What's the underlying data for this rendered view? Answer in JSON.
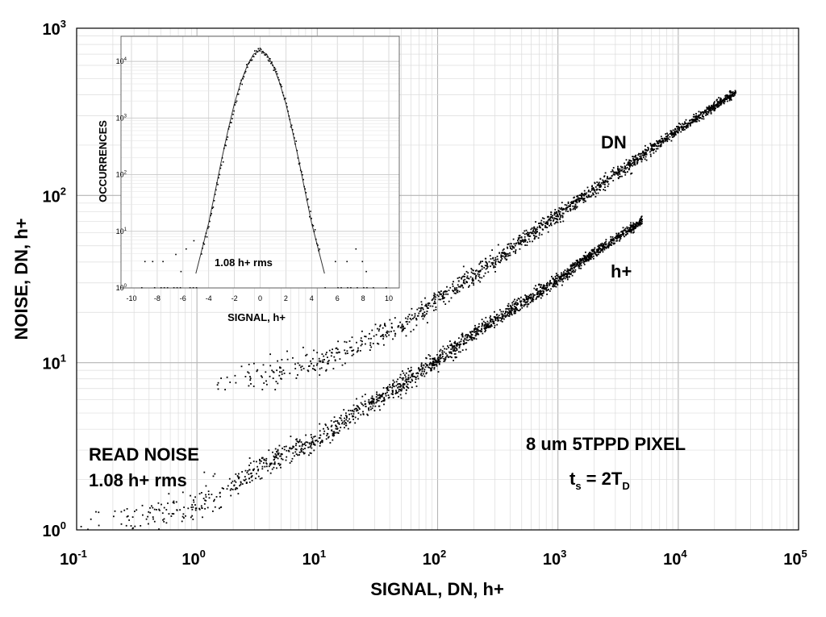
{
  "chart_data": [
    {
      "type": "scatter",
      "xlabel": "SIGNAL, DN, h+",
      "ylabel": "NOISE, DN, h+",
      "x_scale": "log",
      "y_scale": "log",
      "xlim": [
        0.1,
        100000
      ],
      "ylim": [
        1,
        1000
      ],
      "grid": true,
      "x_ticks": [
        {
          "base": "10",
          "exp": "-1"
        },
        {
          "base": "10",
          "exp": "0"
        },
        {
          "base": "10",
          "exp": "1"
        },
        {
          "base": "10",
          "exp": "2"
        },
        {
          "base": "10",
          "exp": "3"
        },
        {
          "base": "10",
          "exp": "4"
        },
        {
          "base": "10",
          "exp": "5"
        }
      ],
      "y_ticks": [
        {
          "base": "10",
          "exp": "0"
        },
        {
          "base": "10",
          "exp": "1"
        },
        {
          "base": "10",
          "exp": "2"
        },
        {
          "base": "10",
          "exp": "3"
        }
      ],
      "series": [
        {
          "name": "DN",
          "x": [
            1,
            2,
            3,
            5,
            10,
            20,
            50,
            100,
            200,
            500,
            1000,
            2000,
            5000,
            10000,
            30000
          ],
          "y": [
            7,
            7.7,
            8.3,
            9,
            10,
            12.5,
            17,
            24,
            34,
            54,
            78,
            110,
            175,
            250,
            420
          ]
        },
        {
          "name": "h+",
          "x": [
            0.1,
            0.3,
            1,
            2,
            3,
            5,
            10,
            20,
            50,
            100,
            200,
            500,
            1000,
            2000,
            5000
          ],
          "y": [
            1.1,
            1.2,
            1.4,
            1.9,
            2.3,
            2.8,
            3.5,
            5,
            7.5,
            10.5,
            15,
            23,
            32,
            46,
            72
          ]
        }
      ],
      "annotations": {
        "series_label_dn": "DN",
        "series_label_hplus": "h+",
        "read_noise_line1": "READ NOISE",
        "read_noise_line2": "1.08 h+  rms",
        "pixel_label": "8 um 5TPPD PIXEL",
        "ts_main": "t",
        "ts_sub": "s",
        "ts_mid": " = 2T",
        "ts_sub2": "D"
      }
    },
    {
      "type": "scatter",
      "xlabel": "SIGNAL, h+",
      "ylabel": "OCCURRENCES",
      "x_scale": "linear",
      "y_scale": "log",
      "xlim": [
        -10,
        10
      ],
      "ylim": [
        1,
        20000
      ],
      "grid": true,
      "x_ticks": [
        "-10",
        "-8",
        "-6",
        "-4",
        "-2",
        "0",
        "2",
        "4",
        "6",
        "8",
        "10"
      ],
      "y_ticks": [
        {
          "base": "10",
          "exp": "0"
        },
        {
          "base": "10",
          "exp": "1"
        },
        {
          "base": "10",
          "exp": "2"
        },
        {
          "base": "10",
          "exp": "3"
        },
        {
          "base": "10",
          "exp": "4"
        }
      ],
      "series": [
        {
          "x": [
            -5,
            -4.5,
            -4,
            -3.5,
            -3,
            -2.5,
            -2,
            -1.5,
            -1,
            -0.5,
            0,
            0.5,
            1,
            1.5,
            2,
            2.5,
            3,
            3.5,
            4,
            4.5,
            5
          ],
          "y": [
            1.8,
            5,
            14,
            50,
            180,
            600,
            1800,
            4300,
            8500,
            13500,
            15500,
            13500,
            8500,
            4300,
            1800,
            600,
            180,
            50,
            14,
            5,
            1.8
          ]
        }
      ],
      "annotation": "1.08 h+ rms"
    }
  ]
}
